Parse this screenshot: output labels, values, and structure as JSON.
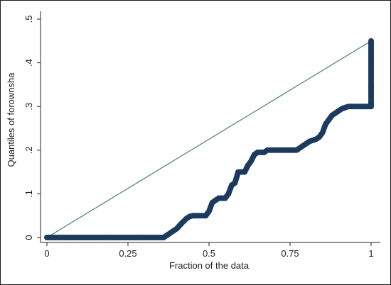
{
  "chart_data": {
    "type": "scatter",
    "title": "",
    "xlabel": "Fraction of the data",
    "ylabel": "Quantiles of forownsha",
    "xlim": [
      0,
      1
    ],
    "ylim": [
      0,
      0.5
    ],
    "x_ticks": [
      "0",
      "0.25",
      "0.5",
      "0.75",
      "1"
    ],
    "x_tick_values": [
      0,
      0.25,
      0.5,
      0.75,
      1
    ],
    "y_ticks": [
      "0",
      ".1",
      ".2",
      ".3",
      ".4",
      ".5"
    ],
    "y_tick_values": [
      0,
      0.1,
      0.2,
      0.3,
      0.4,
      0.5
    ],
    "grid": false,
    "reference_line": {
      "from": [
        0,
        0
      ],
      "to": [
        1,
        0.45
      ],
      "color": "#4a7f66"
    },
    "marker_color": "#1b3a5e",
    "series": [
      {
        "points": [
          [
            0.0,
            0.0
          ],
          [
            0.36,
            0.0
          ],
          [
            0.37,
            0.005
          ],
          [
            0.38,
            0.01
          ],
          [
            0.39,
            0.015
          ],
          [
            0.4,
            0.02
          ],
          [
            0.41,
            0.028
          ],
          [
            0.42,
            0.036
          ],
          [
            0.43,
            0.043
          ],
          [
            0.44,
            0.048
          ],
          [
            0.45,
            0.05
          ],
          [
            0.49,
            0.05
          ],
          [
            0.5,
            0.06
          ],
          [
            0.51,
            0.08
          ],
          [
            0.52,
            0.085
          ],
          [
            0.53,
            0.09
          ],
          [
            0.55,
            0.09
          ],
          [
            0.56,
            0.1
          ],
          [
            0.57,
            0.12
          ],
          [
            0.58,
            0.125
          ],
          [
            0.59,
            0.15
          ],
          [
            0.61,
            0.15
          ],
          [
            0.62,
            0.165
          ],
          [
            0.63,
            0.175
          ],
          [
            0.64,
            0.19
          ],
          [
            0.65,
            0.195
          ],
          [
            0.67,
            0.195
          ],
          [
            0.68,
            0.2
          ],
          [
            0.77,
            0.2
          ],
          [
            0.78,
            0.205
          ],
          [
            0.79,
            0.21
          ],
          [
            0.8,
            0.215
          ],
          [
            0.81,
            0.22
          ],
          [
            0.83,
            0.225
          ],
          [
            0.84,
            0.23
          ],
          [
            0.85,
            0.24
          ],
          [
            0.86,
            0.26
          ],
          [
            0.87,
            0.27
          ],
          [
            0.88,
            0.28
          ],
          [
            0.89,
            0.285
          ],
          [
            0.9,
            0.29
          ],
          [
            0.91,
            0.295
          ],
          [
            0.93,
            0.3
          ],
          [
            1.0,
            0.3
          ],
          [
            1.0,
            0.45
          ]
        ]
      }
    ]
  }
}
